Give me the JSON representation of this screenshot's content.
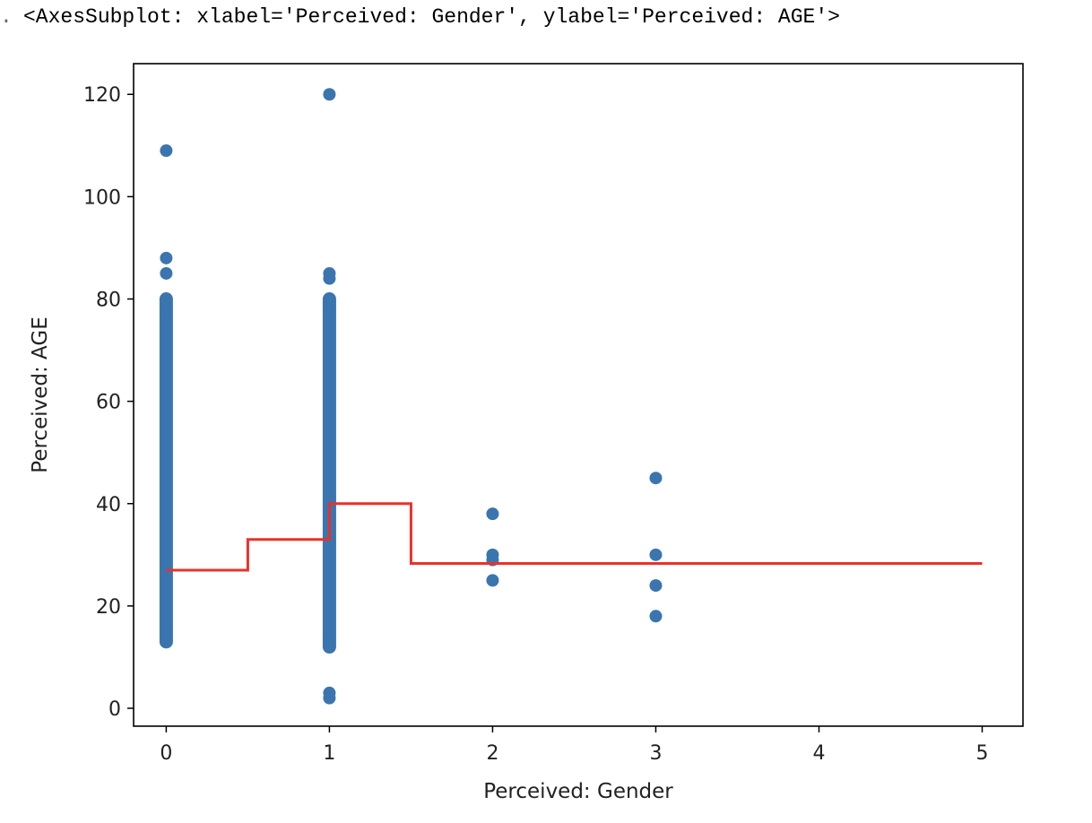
{
  "output": {
    "gutter": ".",
    "repr_text": "<AxesSubplot: xlabel='Perceived: Gender', ylabel='Perceived: AGE'>"
  },
  "chart_data": {
    "type": "scatter",
    "title": "",
    "xlabel": "Perceived: Gender",
    "ylabel": "Perceived: AGE",
    "xlim": [
      -0.2,
      5.25
    ],
    "ylim": [
      -3.5,
      126
    ],
    "xticks": [
      0,
      1,
      2,
      3,
      4,
      5
    ],
    "yticks": [
      0,
      20,
      40,
      60,
      80,
      100,
      120
    ],
    "grid": false,
    "legend": "none",
    "colors": {
      "points": "#3b75af",
      "line": "#e8322a",
      "axes": "#000000"
    },
    "series": [
      {
        "kind": "scatter",
        "points": [
          {
            "x": 0,
            "y": 109
          },
          {
            "x": 0,
            "y": 88
          },
          {
            "x": 0,
            "y": 85
          },
          {
            "x": 0,
            "y": 80
          },
          {
            "x": 0,
            "y": 79
          },
          {
            "x": 0,
            "y": 78
          },
          {
            "x": 0,
            "y": 13
          },
          {
            "x": 0,
            "y": 14
          },
          {
            "x": 0,
            "y": 15
          },
          {
            "x": 1,
            "y": 120
          },
          {
            "x": 1,
            "y": 85
          },
          {
            "x": 1,
            "y": 84
          },
          {
            "x": 1,
            "y": 80
          },
          {
            "x": 1,
            "y": 79
          },
          {
            "x": 1,
            "y": 12
          },
          {
            "x": 1,
            "y": 13
          },
          {
            "x": 1,
            "y": 3
          },
          {
            "x": 1,
            "y": 2
          },
          {
            "x": 2,
            "y": 38
          },
          {
            "x": 2,
            "y": 30
          },
          {
            "x": 2,
            "y": 29
          },
          {
            "x": 2,
            "y": 25
          },
          {
            "x": 3,
            "y": 45
          },
          {
            "x": 3,
            "y": 30
          },
          {
            "x": 3,
            "y": 24
          },
          {
            "x": 3,
            "y": 18
          }
        ],
        "dense_ranges": [
          {
            "x": 0,
            "y_from": 13,
            "y_to": 80
          },
          {
            "x": 1,
            "y_from": 12,
            "y_to": 80
          }
        ]
      },
      {
        "kind": "step",
        "points": [
          {
            "x": 0,
            "y": 27
          },
          {
            "x": 0.5,
            "y": 27
          },
          {
            "x": 0.5,
            "y": 33
          },
          {
            "x": 1,
            "y": 33
          },
          {
            "x": 1,
            "y": 40
          },
          {
            "x": 1.5,
            "y": 40
          },
          {
            "x": 1.5,
            "y": 28.3
          },
          {
            "x": 5,
            "y": 28.3
          }
        ]
      }
    ]
  }
}
